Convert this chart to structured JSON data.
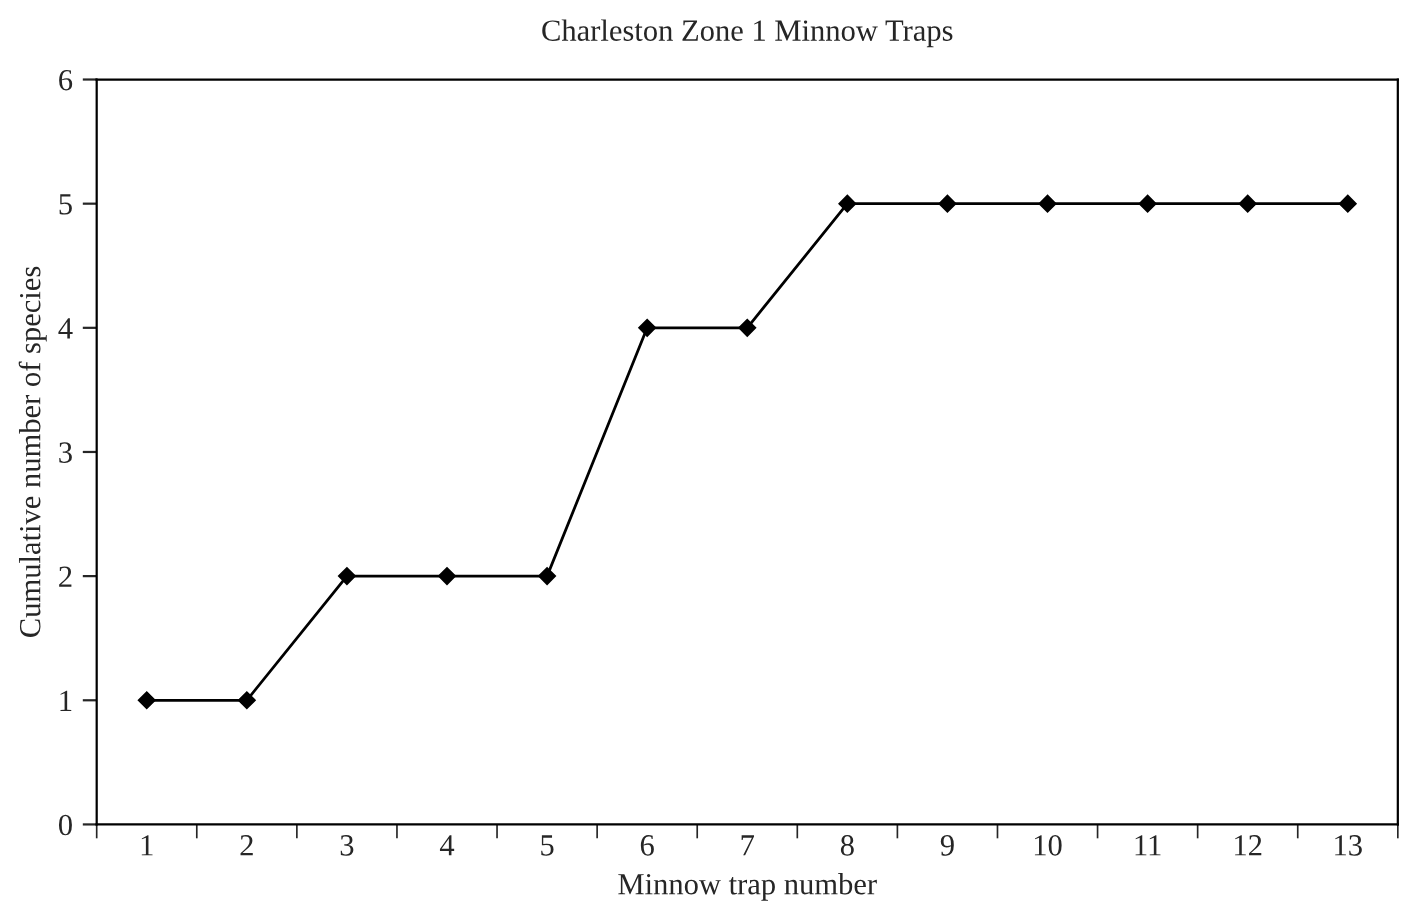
{
  "chart_data": {
    "type": "line",
    "title": "Charleston Zone 1 Minnow Traps",
    "xlabel": "Minnow trap number",
    "ylabel": "Cumulative number of species",
    "categories": [
      "1",
      "2",
      "3",
      "4",
      "5",
      "6",
      "7",
      "8",
      "9",
      "10",
      "11",
      "12",
      "13"
    ],
    "series": [
      {
        "color": "#000000",
        "values": [
          1,
          1,
          2,
          2,
          2,
          4,
          4,
          5,
          5,
          5,
          5,
          5,
          5
        ]
      }
    ],
    "ylim": [
      0,
      6
    ],
    "yticks": [
      0,
      1,
      2,
      3,
      4,
      5,
      6
    ],
    "marker": "diamond",
    "line_style": "solid"
  }
}
